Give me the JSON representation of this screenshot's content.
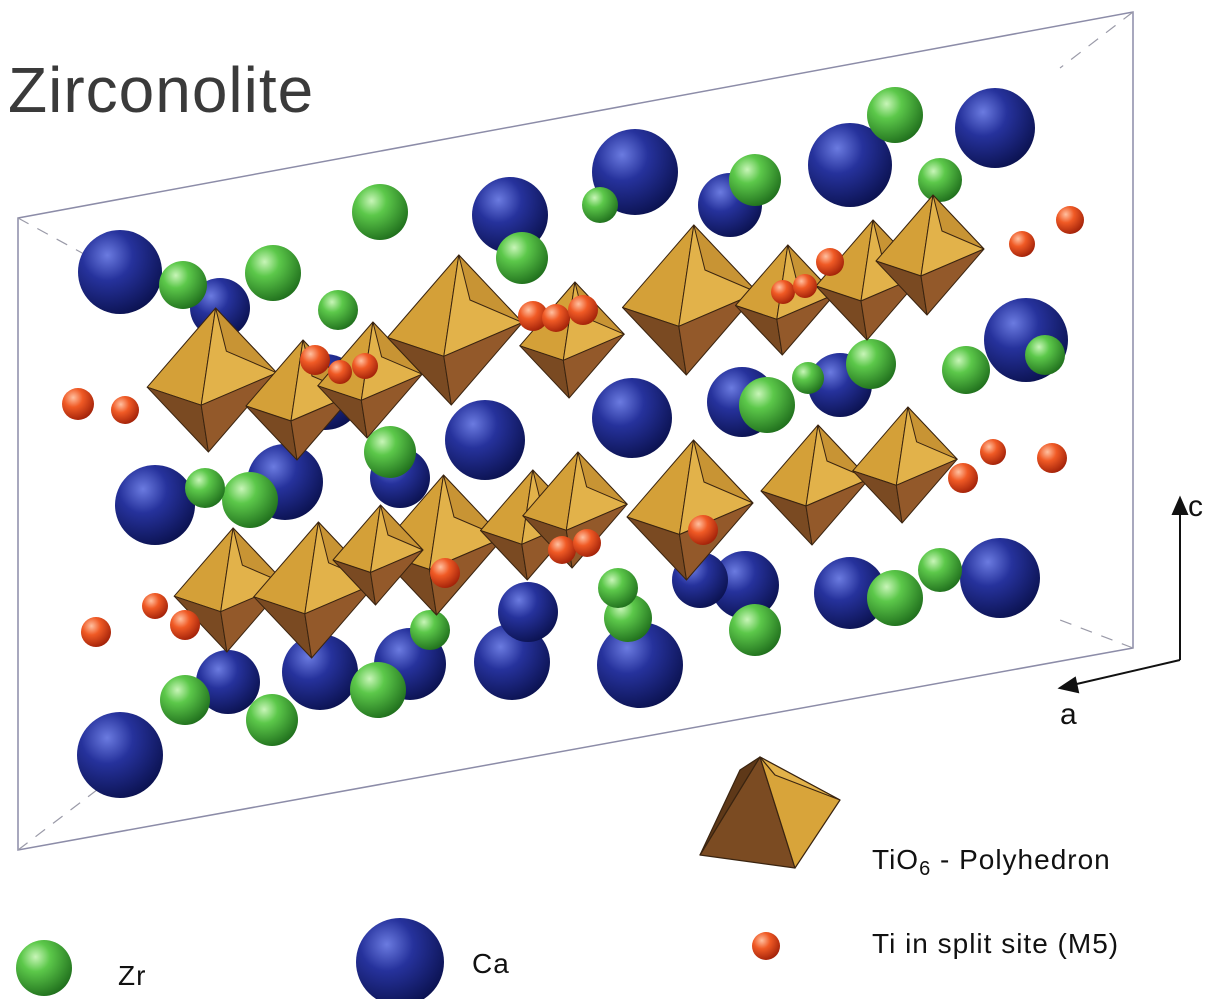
{
  "title": "Zirconolite",
  "axes": {
    "c_label": "c",
    "a_label": "a"
  },
  "legend": {
    "polyhedron": {
      "formula_main": "TiO",
      "formula_sub": "6",
      "suffix": " - Polyhedron"
    },
    "zr": "Zr",
    "ca": "Ca",
    "ti_split": "Ti in split site (M5)"
  },
  "colors": {
    "zr_sphere": "#3fae3a",
    "ca_sphere": "#1e2a8c",
    "ti_sphere": "#e8481c",
    "polyhedron_light": "#d9a53a",
    "polyhedron_dark": "#7a4a22",
    "cell_edge": "#8888aa"
  },
  "icons": [
    "zr-sphere-icon",
    "ca-sphere-icon",
    "ti-sphere-icon",
    "tio6-polyhedron-icon"
  ]
}
